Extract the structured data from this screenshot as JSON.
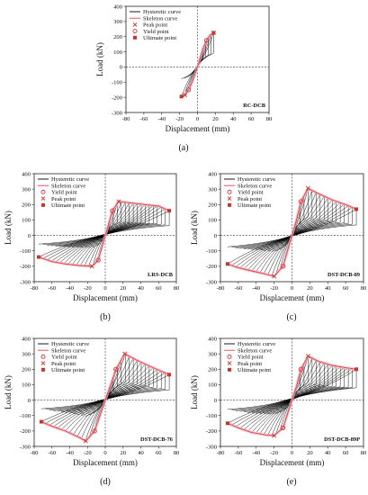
{
  "chart_data": [
    {
      "type": "line",
      "panel_label": "(a)",
      "specimen": "RC-DCB",
      "xlabel": "Displacement (mm)",
      "ylabel": "Load (kN)",
      "xlim": [
        -80,
        80
      ],
      "ylim": [
        -300,
        400
      ],
      "xticks": [
        -80,
        -60,
        -40,
        -20,
        0,
        20,
        40,
        60,
        80
      ],
      "yticks": [
        -300,
        -200,
        -100,
        0,
        100,
        200,
        300,
        400
      ],
      "legend": [
        "Hysteretic curve",
        "Skeleton curve",
        "Peak point",
        "Yield point",
        "Ultimate point"
      ],
      "legend_position": "top-left",
      "series": [
        {
          "name": "Skeleton curve",
          "x": [
            -18,
            -14,
            -10,
            -6,
            -3,
            0,
            3,
            6,
            10,
            14,
            18
          ],
          "y": [
            -195,
            -185,
            -150,
            -100,
            -50,
            0,
            60,
            120,
            175,
            210,
            225
          ]
        }
      ],
      "yield_point": [
        [
          10,
          175
        ],
        [
          -10,
          -150
        ]
      ],
      "peak_point": [
        [
          18,
          225
        ],
        [
          -14,
          -185
        ]
      ],
      "ultimate_point": [
        [
          18,
          225
        ],
        [
          -18,
          -195
        ]
      ]
    },
    {
      "type": "line",
      "panel_label": "(b)",
      "specimen": "LRS-DCB",
      "xlabel": "Displacement (mm)",
      "ylabel": "Load (kN)",
      "xlim": [
        -80,
        80
      ],
      "ylim": [
        -300,
        400
      ],
      "xticks": [
        -80,
        -60,
        -40,
        -20,
        0,
        20,
        40,
        60,
        80
      ],
      "yticks": [
        -300,
        -200,
        -100,
        0,
        100,
        200,
        300,
        400
      ],
      "legend": [
        "Hysteretic curve",
        "Skeleton curve",
        "Yield point",
        "Peak point",
        "Ultimate point"
      ],
      "legend_position": "top-left",
      "series": [
        {
          "name": "Skeleton curve",
          "x": [
            -75,
            -60,
            -45,
            -30,
            -15,
            -8,
            -4,
            0,
            4,
            8,
            15,
            30,
            45,
            60,
            72
          ],
          "y": [
            -140,
            -170,
            -185,
            -195,
            -200,
            -160,
            -80,
            0,
            80,
            160,
            220,
            210,
            200,
            190,
            160
          ]
        }
      ],
      "yield_point": [
        [
          8,
          160
        ],
        [
          -8,
          -160
        ]
      ],
      "peak_point": [
        [
          15,
          220
        ],
        [
          -15,
          -200
        ]
      ],
      "ultimate_point": [
        [
          72,
          160
        ],
        [
          -75,
          -140
        ]
      ]
    },
    {
      "type": "line",
      "panel_label": "(c)",
      "specimen": "DST-DCB-89",
      "xlabel": "Displacement (mm)",
      "ylabel": "Load (kN)",
      "xlim": [
        -80,
        80
      ],
      "ylim": [
        -300,
        400
      ],
      "xticks": [
        -80,
        -60,
        -40,
        -20,
        0,
        20,
        40,
        60,
        80
      ],
      "yticks": [
        -300,
        -200,
        -100,
        0,
        100,
        200,
        300,
        400
      ],
      "legend": [
        "Hysteretic curve",
        "Skeleton curve",
        "Yield point",
        "Peak point",
        "Ultimate point"
      ],
      "legend_position": "top-left",
      "series": [
        {
          "name": "Skeleton curve",
          "x": [
            -72,
            -60,
            -45,
            -30,
            -20,
            -10,
            -5,
            0,
            5,
            10,
            18,
            30,
            45,
            60,
            72
          ],
          "y": [
            -185,
            -210,
            -230,
            -250,
            -265,
            -200,
            -100,
            0,
            100,
            220,
            305,
            270,
            230,
            200,
            170
          ]
        }
      ],
      "yield_point": [
        [
          10,
          220
        ],
        [
          -10,
          -200
        ]
      ],
      "peak_point": [
        [
          18,
          305
        ],
        [
          -20,
          -265
        ]
      ],
      "ultimate_point": [
        [
          72,
          170
        ],
        [
          -72,
          -185
        ]
      ]
    },
    {
      "type": "line",
      "panel_label": "(d)",
      "specimen": "DST-DCB-76",
      "xlabel": "Displacement (mm)",
      "ylabel": "Load (kN)",
      "xlim": [
        -80,
        80
      ],
      "ylim": [
        -300,
        400
      ],
      "xticks": [
        -80,
        -60,
        -40,
        -20,
        0,
        20,
        40,
        60,
        80
      ],
      "yticks": [
        -300,
        -200,
        -100,
        0,
        100,
        200,
        300,
        400
      ],
      "legend": [
        "Hysteretic curve",
        "Skeleton curve",
        "Yield point",
        "Peak point",
        "Ultimate point"
      ],
      "legend_position": "top-left",
      "series": [
        {
          "name": "Skeleton curve",
          "x": [
            -72,
            -60,
            -45,
            -30,
            -22,
            -12,
            -6,
            0,
            6,
            12,
            22,
            35,
            50,
            62,
            72
          ],
          "y": [
            -140,
            -170,
            -200,
            -240,
            -265,
            -200,
            -100,
            0,
            100,
            200,
            300,
            260,
            220,
            190,
            165
          ]
        }
      ],
      "yield_point": [
        [
          12,
          200
        ],
        [
          -12,
          -200
        ]
      ],
      "peak_point": [
        [
          22,
          300
        ],
        [
          -22,
          -265
        ]
      ],
      "ultimate_point": [
        [
          72,
          165
        ],
        [
          -72,
          -140
        ]
      ]
    },
    {
      "type": "line",
      "panel_label": "(e)",
      "specimen": "DST-DCB-89P",
      "xlabel": "Displacement (mm)",
      "ylabel": "Load (kN)",
      "xlim": [
        -80,
        80
      ],
      "ylim": [
        -300,
        400
      ],
      "xticks": [
        -80,
        -60,
        -40,
        -20,
        0,
        20,
        40,
        60,
        80
      ],
      "yticks": [
        -300,
        -200,
        -100,
        0,
        100,
        200,
        300,
        400
      ],
      "legend": [
        "Hysteretic curve",
        "Skeleton curve",
        "Yield point",
        "Peak point",
        "Ultimate point"
      ],
      "legend_position": "top-left",
      "series": [
        {
          "name": "Skeleton curve",
          "x": [
            -72,
            -60,
            -45,
            -30,
            -20,
            -10,
            -5,
            0,
            5,
            10,
            18,
            30,
            45,
            60,
            72
          ],
          "y": [
            -150,
            -180,
            -210,
            -225,
            -230,
            -180,
            -90,
            0,
            90,
            200,
            285,
            250,
            225,
            210,
            200
          ]
        }
      ],
      "yield_point": [
        [
          10,
          200
        ],
        [
          -10,
          -180
        ]
      ],
      "peak_point": [
        [
          18,
          285
        ],
        [
          -20,
          -230
        ]
      ],
      "ultimate_point": [
        [
          72,
          200
        ],
        [
          -72,
          -150
        ]
      ]
    }
  ]
}
